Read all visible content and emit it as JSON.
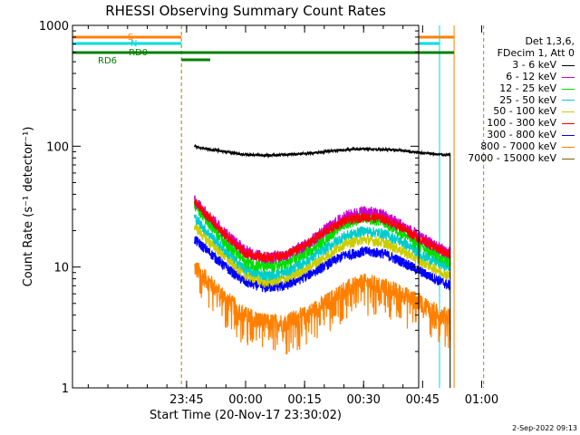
{
  "chart_data": {
    "type": "line",
    "title": "RHESSI Observing Summary Count Rates",
    "xlabel": "Start Time (20-Nov-17 23:30:02)",
    "ylabel": "Count Rate (s⁻¹ detector⁻¹)",
    "yscale": "log",
    "ylim": [
      1,
      1000
    ],
    "xlim_minutes": [
      -14,
      74
    ],
    "y_ticks": [
      {
        "value": 1,
        "label": "1"
      },
      {
        "value": 10,
        "label": "10"
      },
      {
        "value": 100,
        "label": "100"
      },
      {
        "value": 1000,
        "label": "1000"
      }
    ],
    "x_ticks": [
      {
        "minutes": 15,
        "label": "23:45"
      },
      {
        "minutes": 30,
        "label": "00:00"
      },
      {
        "minutes": 45,
        "label": "00:15"
      },
      {
        "minutes": 60,
        "label": "00:30"
      },
      {
        "minutes": 75,
        "label": "00:45"
      },
      {
        "minutes": 90,
        "label": "01:00"
      }
    ],
    "legend_header": [
      "Det 1,3,6,",
      "FDecim 1, Att 0"
    ],
    "series": [
      {
        "name": "3 - 6 keV",
        "color": "#000000",
        "x": [
          17,
          20,
          25,
          30,
          35,
          40,
          45,
          50,
          55,
          60,
          65,
          70,
          75,
          80,
          82
        ],
        "values": [
          100,
          95,
          90,
          85,
          84,
          85,
          87,
          90,
          93,
          95,
          94,
          92,
          88,
          85,
          85
        ]
      },
      {
        "name": "6 - 12 keV",
        "color": "#cc00cc",
        "x": [
          17,
          20,
          25,
          30,
          35,
          40,
          45,
          50,
          55,
          60,
          65,
          70,
          75,
          80,
          82
        ],
        "values": [
          36,
          28,
          19,
          13.5,
          12,
          12.5,
          15,
          20,
          26,
          29,
          27,
          22,
          17,
          14,
          13
        ]
      },
      {
        "name": "12 - 25 keV",
        "color": "#00dd00",
        "x": [
          17,
          20,
          25,
          30,
          35,
          40,
          45,
          50,
          55,
          60,
          65,
          70,
          75,
          80,
          82
        ],
        "values": [
          33,
          25,
          16,
          11,
          10,
          10.5,
          13,
          17,
          23,
          26,
          24,
          19,
          14.5,
          12,
          11
        ]
      },
      {
        "name": "25 - 50 keV",
        "color": "#00cccc",
        "x": [
          17,
          20,
          25,
          30,
          35,
          40,
          45,
          50,
          55,
          60,
          65,
          70,
          75,
          80,
          82
        ],
        "values": [
          26,
          20,
          13.5,
          9.5,
          8.5,
          9,
          11,
          14,
          18,
          20,
          19,
          16,
          12.5,
          10.5,
          10
        ]
      },
      {
        "name": "50 - 100 keV",
        "color": "#cccc00",
        "x": [
          17,
          20,
          25,
          30,
          35,
          40,
          45,
          50,
          55,
          60,
          65,
          70,
          75,
          80,
          82
        ],
        "values": [
          22,
          17,
          12,
          8.5,
          7.5,
          8,
          9.5,
          12,
          15.5,
          17,
          16,
          13.5,
          11,
          9,
          8.5
        ]
      },
      {
        "name": "100 - 300 keV",
        "color": "#ff0000",
        "x": [
          17,
          20,
          25,
          30,
          35,
          40,
          45,
          50,
          55,
          60,
          65,
          70,
          75,
          80,
          82
        ],
        "values": [
          35,
          27,
          18,
          13,
          12,
          12.5,
          15,
          19.5,
          24,
          26,
          25,
          21,
          16.5,
          13.5,
          12.5
        ]
      },
      {
        "name": "300 - 800 keV",
        "color": "#0000ff",
        "x": [
          17,
          20,
          25,
          30,
          35,
          40,
          45,
          50,
          55,
          60,
          65,
          70,
          75,
          80,
          82
        ],
        "values": [
          17,
          14,
          10,
          7.5,
          6.8,
          7,
          8.3,
          10.2,
          12.5,
          13.5,
          13,
          11,
          9,
          7.5,
          7
        ]
      },
      {
        "name": "800 - 7000 keV",
        "color": "#ff8000",
        "x": [
          17,
          20,
          25,
          30,
          35,
          40,
          45,
          50,
          55,
          60,
          65,
          70,
          75,
          80,
          82
        ],
        "values": [
          10,
          8,
          5.5,
          4,
          3.5,
          3.5,
          4,
          5,
          6.5,
          7.5,
          7,
          6,
          5,
          4,
          4
        ]
      },
      {
        "name": "7000 - 15000 keV",
        "color": "#806000",
        "x": [],
        "values": []
      }
    ],
    "flag_bars": [
      {
        "label": "S",
        "color": "#ff8000",
        "segments": [
          [
            -14,
            13.7
          ],
          [
            83,
            74
          ]
        ]
      },
      {
        "label": "N",
        "color": "#00dddd",
        "segments": [
          [
            -14,
            13.7
          ],
          [
            79.3,
            74
          ]
        ]
      },
      {
        "label": "RD0",
        "color": "#008000",
        "segments": [
          [
            -14,
            83
          ],
          [
            13.7,
            51
          ],
          [
            80,
            74
          ]
        ]
      },
      {
        "label": "RD6",
        "color": "#008000",
        "segments": [
          [
            13.7,
            21
          ]
        ]
      }
    ],
    "vertical_markers": [
      {
        "minutes": -14,
        "color": "#00dddd",
        "style": "solid"
      },
      {
        "minutes": 13.7,
        "color": "#00dddd",
        "style": "dashed"
      },
      {
        "minutes": 13.7,
        "color": "#ff8000",
        "style": "dashed"
      },
      {
        "minutes": 79.3,
        "color": "#00dddd",
        "style": "solid"
      },
      {
        "minutes": 83,
        "color": "#ff8000",
        "style": "solid"
      },
      {
        "minutes": 90.5,
        "color": "#00dddd",
        "style": "dashed"
      },
      {
        "minutes": 90.5,
        "color": "#ff8000",
        "style": "dashed"
      }
    ]
  },
  "footer": {
    "timestamp": "2-Sep-2022 09:13"
  }
}
